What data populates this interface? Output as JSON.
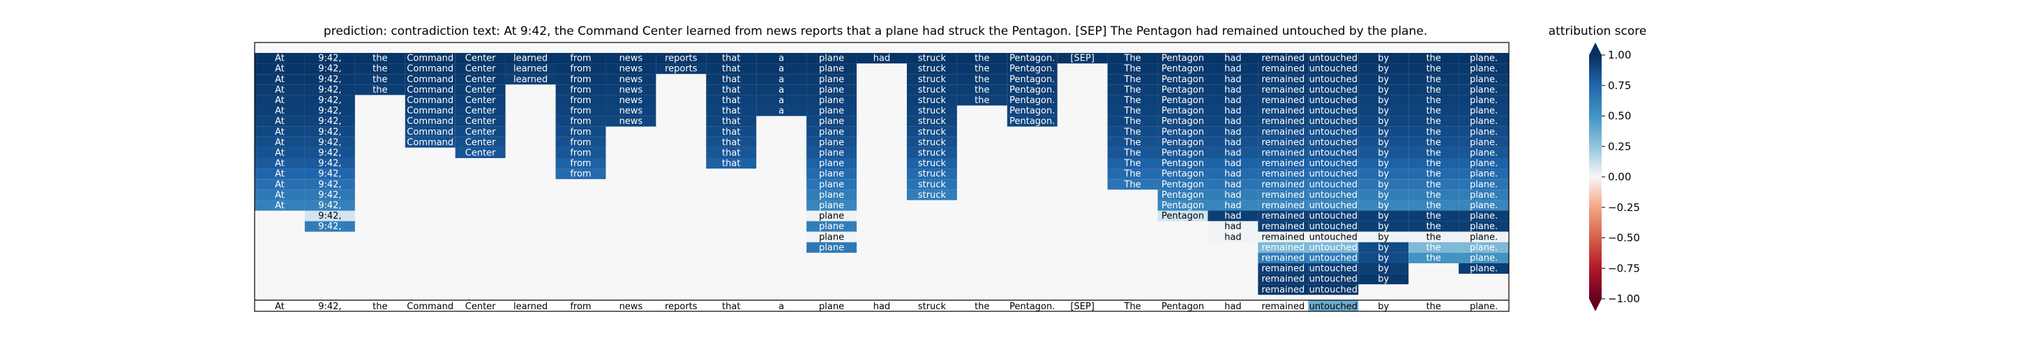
{
  "chart_data": {
    "type": "heatmap",
    "title": "prediction:  contradiction     text:  At 9:42, the Command Center learned from news reports that a plane had struck the Pentagon. [SEP] The Pentagon had remained untouched by the plane.",
    "tokens": [
      "At",
      "9:42,",
      "the",
      "Command",
      "Center",
      "learned",
      "from",
      "news",
      "reports",
      "that",
      "a",
      "plane",
      "had",
      "struck",
      "the",
      "Pentagon.",
      "[SEP]",
      "The",
      "Pentagon",
      "had",
      "remained",
      "untouched",
      "by",
      "the",
      "plane."
    ],
    "rows": [
      [
        0.98,
        0.98,
        0.98,
        0.98,
        0.98,
        0.98,
        0.98,
        0.98,
        0.98,
        0.98,
        0.98,
        0.98,
        0.98,
        0.98,
        0.98,
        0.98,
        0.98,
        0.98,
        0.98,
        0.98,
        0.98,
        0.98,
        0.98,
        0.98,
        0.98
      ],
      [
        0.98,
        0.98,
        0.97,
        0.97,
        0.97,
        0.96,
        0.97,
        0.97,
        0.96,
        0.97,
        0.97,
        0.97,
        0,
        0.97,
        0.97,
        0.97,
        0,
        0.97,
        0.97,
        0.97,
        0.97,
        0.97,
        0.97,
        0.97,
        0.97
      ],
      [
        0.97,
        0.97,
        0.96,
        0.97,
        0.96,
        0.95,
        0.96,
        0.96,
        0,
        0.96,
        0.96,
        0.96,
        0,
        0.96,
        0.96,
        0.96,
        0,
        0.96,
        0.96,
        0.96,
        0.96,
        0.96,
        0.96,
        0.96,
        0.96
      ],
      [
        0.96,
        0.96,
        0.95,
        0.96,
        0.95,
        0,
        0.95,
        0.95,
        0,
        0.95,
        0.95,
        0.95,
        0,
        0.95,
        0.95,
        0.95,
        0,
        0.95,
        0.95,
        0.95,
        0.95,
        0.95,
        0.95,
        0.95,
        0.95
      ],
      [
        0.95,
        0.95,
        0,
        0.94,
        0.94,
        0,
        0.94,
        0.94,
        0,
        0.94,
        0.94,
        0.94,
        0,
        0.94,
        0.94,
        0.94,
        0,
        0.94,
        0.94,
        0.94,
        0.94,
        0.94,
        0.94,
        0.94,
        0.94
      ],
      [
        0.94,
        0.94,
        0,
        0.93,
        0.93,
        0,
        0.93,
        0.93,
        0,
        0.93,
        0.93,
        0.93,
        0,
        0.93,
        0,
        0.93,
        0,
        0.93,
        0.93,
        0.93,
        0.93,
        0.93,
        0.93,
        0.93,
        0.93
      ],
      [
        0.93,
        0.93,
        0,
        0.92,
        0.92,
        0,
        0.92,
        0.92,
        0,
        0.92,
        0,
        0.92,
        0,
        0.92,
        0,
        0.92,
        0,
        0.92,
        0.92,
        0.92,
        0.92,
        0.92,
        0.92,
        0.92,
        0.92
      ],
      [
        0.91,
        0.91,
        0,
        0.9,
        0.9,
        0,
        0.9,
        0,
        0,
        0.9,
        0,
        0.9,
        0,
        0.9,
        0,
        0,
        0,
        0.9,
        0.9,
        0.9,
        0.9,
        0.9,
        0.9,
        0.9,
        0.9
      ],
      [
        0.89,
        0.89,
        0,
        0.88,
        0.88,
        0,
        0.88,
        0,
        0,
        0.88,
        0,
        0.88,
        0,
        0.88,
        0,
        0,
        0,
        0.88,
        0.88,
        0.88,
        0.88,
        0.88,
        0.88,
        0.88,
        0.88
      ],
      [
        0.87,
        0.87,
        0,
        0,
        0.86,
        0,
        0.86,
        0,
        0,
        0.86,
        0,
        0.86,
        0,
        0.86,
        0,
        0,
        0,
        0.86,
        0.86,
        0.86,
        0.86,
        0.86,
        0.86,
        0.86,
        0.86
      ],
      [
        0.84,
        0.84,
        0,
        0,
        0,
        0,
        0.82,
        0,
        0,
        0.82,
        0,
        0.82,
        0,
        0.82,
        0,
        0,
        0,
        0.82,
        0.82,
        0.82,
        0.82,
        0.82,
        0.82,
        0.82,
        0.82
      ],
      [
        0.8,
        0.8,
        0,
        0,
        0,
        0,
        0.78,
        0,
        0,
        0,
        0,
        0.78,
        0,
        0.78,
        0,
        0,
        0,
        0.78,
        0.78,
        0.78,
        0.78,
        0.78,
        0.78,
        0.78,
        0.78
      ],
      [
        0.76,
        0.76,
        0,
        0,
        0,
        0,
        0,
        0,
        0,
        0,
        0,
        0.74,
        0,
        0.74,
        0,
        0,
        0,
        0.74,
        0.74,
        0.74,
        0.74,
        0.74,
        0.74,
        0.74,
        0.74
      ],
      [
        0.72,
        0.72,
        0,
        0,
        0,
        0,
        0,
        0,
        0,
        0,
        0,
        0.7,
        0,
        0.7,
        0,
        0,
        0,
        0,
        0.7,
        0.7,
        0.7,
        0.7,
        0.7,
        0.7,
        0.7
      ],
      [
        0.68,
        0.68,
        0,
        0,
        0,
        0,
        0,
        0,
        0,
        0,
        0,
        0.66,
        0,
        0,
        0,
        0,
        0,
        0,
        0.66,
        0.66,
        0.66,
        0.66,
        0.66,
        0.66,
        0.66
      ],
      [
        0,
        0.2,
        0,
        0,
        0,
        0,
        0,
        0,
        0,
        0,
        0,
        0.06,
        0,
        0,
        0,
        0,
        0,
        0,
        0.2,
        0.95,
        0.95,
        0.95,
        0.95,
        0.95,
        0.95
      ],
      [
        0,
        0.7,
        0,
        0,
        0,
        0,
        0,
        0,
        0,
        0,
        0,
        0.7,
        0,
        0,
        0,
        0,
        0,
        0,
        0,
        0.04,
        0.95,
        0.95,
        0.95,
        0.95,
        0.95
      ],
      [
        0,
        0,
        0,
        0,
        0,
        0,
        0,
        0,
        0,
        0,
        0,
        0.03,
        0,
        0,
        0,
        0,
        0,
        0,
        0,
        0.03,
        0.04,
        0.04,
        0.05,
        0.05,
        0.04
      ],
      [
        0,
        0,
        0,
        0,
        0,
        0,
        0,
        0,
        0,
        0,
        0,
        0.72,
        0,
        0,
        0,
        0,
        0,
        0,
        0,
        0,
        0.45,
        0.45,
        0.9,
        0.45,
        0.45
      ],
      [
        0,
        0,
        0,
        0,
        0,
        0,
        0,
        0,
        0,
        0,
        0,
        0,
        0,
        0,
        0,
        0,
        0,
        0,
        0,
        0,
        0.7,
        0.7,
        0.9,
        0.6,
        0.6
      ],
      [
        0,
        0,
        0,
        0,
        0,
        0,
        0,
        0,
        0,
        0,
        0,
        0,
        0,
        0,
        0,
        0,
        0,
        0,
        0,
        0,
        0.95,
        0.95,
        0.95,
        0,
        0.95
      ],
      [
        0,
        0,
        0,
        0,
        0,
        0,
        0,
        0,
        0,
        0,
        0,
        0,
        0,
        0,
        0,
        0,
        0,
        0,
        0,
        0,
        0.97,
        0.97,
        0.97,
        0,
        0
      ],
      [
        0,
        0,
        0,
        0,
        0,
        0,
        0,
        0,
        0,
        0,
        0,
        0,
        0,
        0,
        0,
        0,
        0,
        0,
        0,
        0,
        0.98,
        0.98,
        0,
        0,
        0
      ]
    ],
    "bottom_values": [
      0,
      0,
      0,
      0,
      0,
      0,
      0,
      0,
      0,
      0,
      0,
      0,
      0,
      0,
      0,
      0,
      0,
      0,
      0,
      0,
      0,
      0.5,
      0,
      0,
      0
    ],
    "colorbar": {
      "label": "attribution score",
      "range": [
        -1,
        1
      ],
      "ticks": [
        1.0,
        0.75,
        0.5,
        0.25,
        0.0,
        -0.25,
        -0.5,
        -0.75,
        -1.0
      ],
      "tick_labels": [
        "1.00",
        "0.75",
        "0.50",
        "0.25",
        "0.00",
        "−0.25",
        "−0.50",
        "−0.75",
        "−1.00"
      ]
    }
  }
}
